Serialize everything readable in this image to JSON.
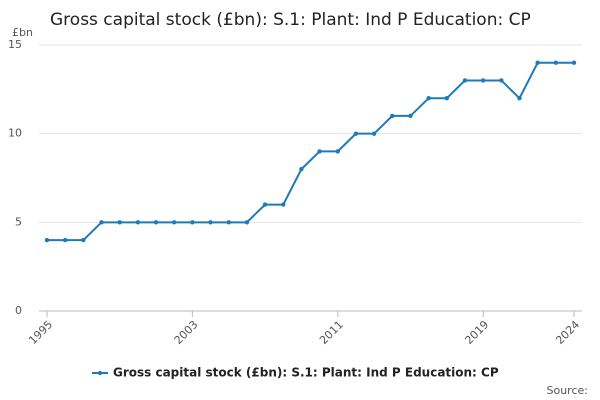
{
  "chart_data": {
    "type": "line",
    "title": "Gross capital stock (£bn): S.1: Plant: Ind P Education: CP",
    "y_unit_label": "£bn",
    "source_label": "Source:",
    "x": [
      1995,
      1996,
      1997,
      1998,
      1999,
      2000,
      2001,
      2002,
      2003,
      2004,
      2005,
      2006,
      2007,
      2008,
      2009,
      2010,
      2011,
      2012,
      2013,
      2014,
      2015,
      2016,
      2017,
      2018,
      2019,
      2020,
      2021,
      2022,
      2023,
      2024
    ],
    "series": [
      {
        "name": "Gross capital stock (£bn): S.1: Plant: Ind P Education: CP",
        "color": "#1f7bb8",
        "values": [
          4,
          4,
          4,
          5,
          5,
          5,
          5,
          5,
          5,
          5,
          5,
          5,
          6,
          6,
          8,
          9,
          9,
          10,
          10,
          11,
          11,
          12,
          12,
          13,
          13,
          13,
          12,
          14,
          14,
          14
        ]
      }
    ],
    "xlim": [
      1995,
      2024
    ],
    "xticks": [
      1995,
      2003,
      2011,
      2019,
      2024
    ],
    "ylim": [
      0,
      15
    ],
    "yticks": [
      0,
      5,
      10,
      15
    ],
    "grid": true
  }
}
